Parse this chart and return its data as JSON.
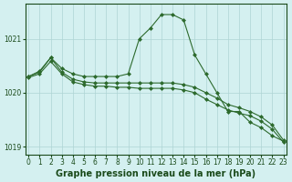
{
  "xlabel": "Graphe pression niveau de la mer (hPa)",
  "x": [
    0,
    1,
    2,
    3,
    4,
    5,
    6,
    7,
    8,
    9,
    10,
    11,
    12,
    13,
    14,
    15,
    16,
    17,
    18,
    19,
    20,
    21,
    22,
    23
  ],
  "line1": [
    1020.3,
    1020.4,
    1020.65,
    1020.45,
    1020.35,
    1020.3,
    1020.3,
    1020.3,
    1020.3,
    1020.35,
    1021.0,
    1021.2,
    1021.45,
    1021.45,
    1021.35,
    1020.7,
    1020.35,
    1020.0,
    1019.65,
    1019.65,
    1019.45,
    1019.35,
    1019.2,
    1019.1
  ],
  "line2": [
    1020.3,
    1020.38,
    1020.65,
    1020.38,
    1020.25,
    1020.2,
    1020.18,
    1020.18,
    1020.18,
    1020.18,
    1020.18,
    1020.18,
    1020.18,
    1020.18,
    1020.15,
    1020.1,
    1020.0,
    1019.9,
    1019.78,
    1019.72,
    1019.65,
    1019.55,
    1019.4,
    1019.12
  ],
  "line3": [
    1020.28,
    1020.35,
    1020.58,
    1020.35,
    1020.2,
    1020.15,
    1020.12,
    1020.12,
    1020.1,
    1020.1,
    1020.08,
    1020.08,
    1020.08,
    1020.08,
    1020.05,
    1020.0,
    1019.88,
    1019.78,
    1019.68,
    1019.62,
    1019.57,
    1019.47,
    1019.32,
    1019.08
  ],
  "line_color": "#2d6a2d",
  "bg_color": "#d4f0f0",
  "grid_color": "#aed4d4",
  "ylim": [
    1018.85,
    1021.65
  ],
  "yticks": [
    1019,
    1020,
    1021
  ],
  "xticks": [
    0,
    1,
    2,
    3,
    4,
    5,
    6,
    7,
    8,
    9,
    10,
    11,
    12,
    13,
    14,
    15,
    16,
    17,
    18,
    19,
    20,
    21,
    22,
    23
  ],
  "marker": "D",
  "markersize": 2.0,
  "linewidth": 0.8,
  "xlabel_fontsize": 7,
  "tick_fontsize": 5.5,
  "label_color": "#1a4a1a"
}
